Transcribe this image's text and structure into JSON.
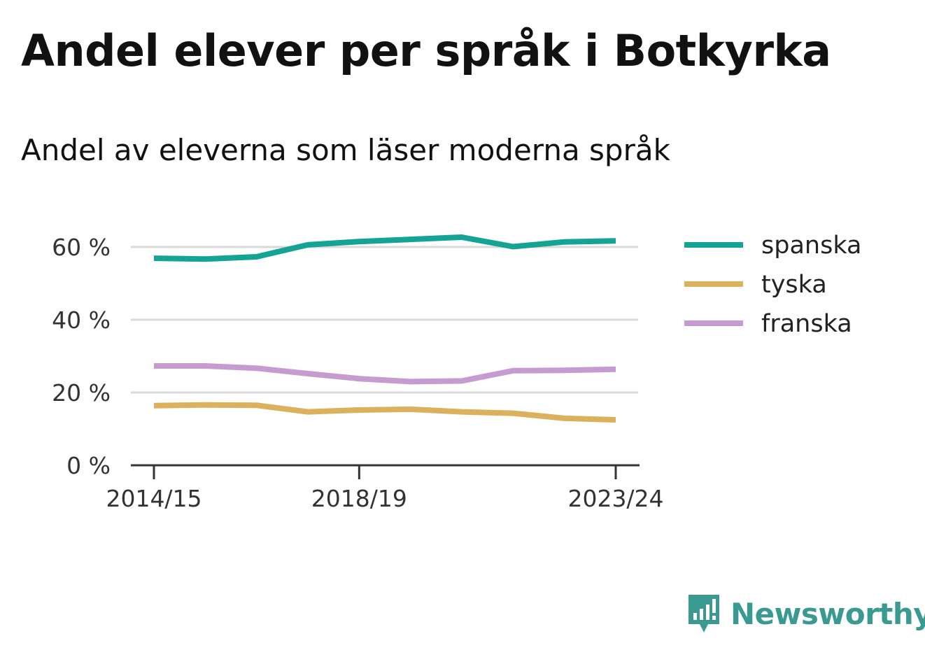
{
  "header": {
    "title": "Andel elever per språk i Botkyrka",
    "subtitle": "Andel av eleverna som läser moderna språk"
  },
  "brand": {
    "name": "Newsworthy",
    "icon": "newsworthy-logo-icon",
    "color": "#3a9a92"
  },
  "chart_data": {
    "type": "line",
    "x": [
      "2014/15",
      "2015/16",
      "2016/17",
      "2017/18",
      "2018/19",
      "2019/20",
      "2020/21",
      "2021/22",
      "2022/23",
      "2023/24"
    ],
    "x_tick_labels": [
      "2014/15",
      "2018/19",
      "2023/24"
    ],
    "y_tick_labels": [
      "0 %",
      "20 %",
      "40 %",
      "60 %"
    ],
    "y_ticks": [
      0,
      20,
      40,
      60
    ],
    "ylim": [
      0,
      70
    ],
    "grid": true,
    "legend_position": "right",
    "series": [
      {
        "name": "spanska",
        "color": "#14a394",
        "values": [
          56.9,
          56.7,
          57.3,
          60.6,
          61.5,
          62.1,
          62.7,
          60.1,
          61.4,
          61.7
        ]
      },
      {
        "name": "tyska",
        "color": "#dbb15d",
        "values": [
          16.4,
          16.6,
          16.5,
          14.7,
          15.2,
          15.4,
          14.7,
          14.3,
          12.9,
          12.5
        ]
      },
      {
        "name": "franska",
        "color": "#c69bcf",
        "values": [
          27.3,
          27.3,
          26.7,
          25.2,
          23.8,
          23.0,
          23.2,
          26.0,
          26.1,
          26.4
        ]
      }
    ]
  }
}
